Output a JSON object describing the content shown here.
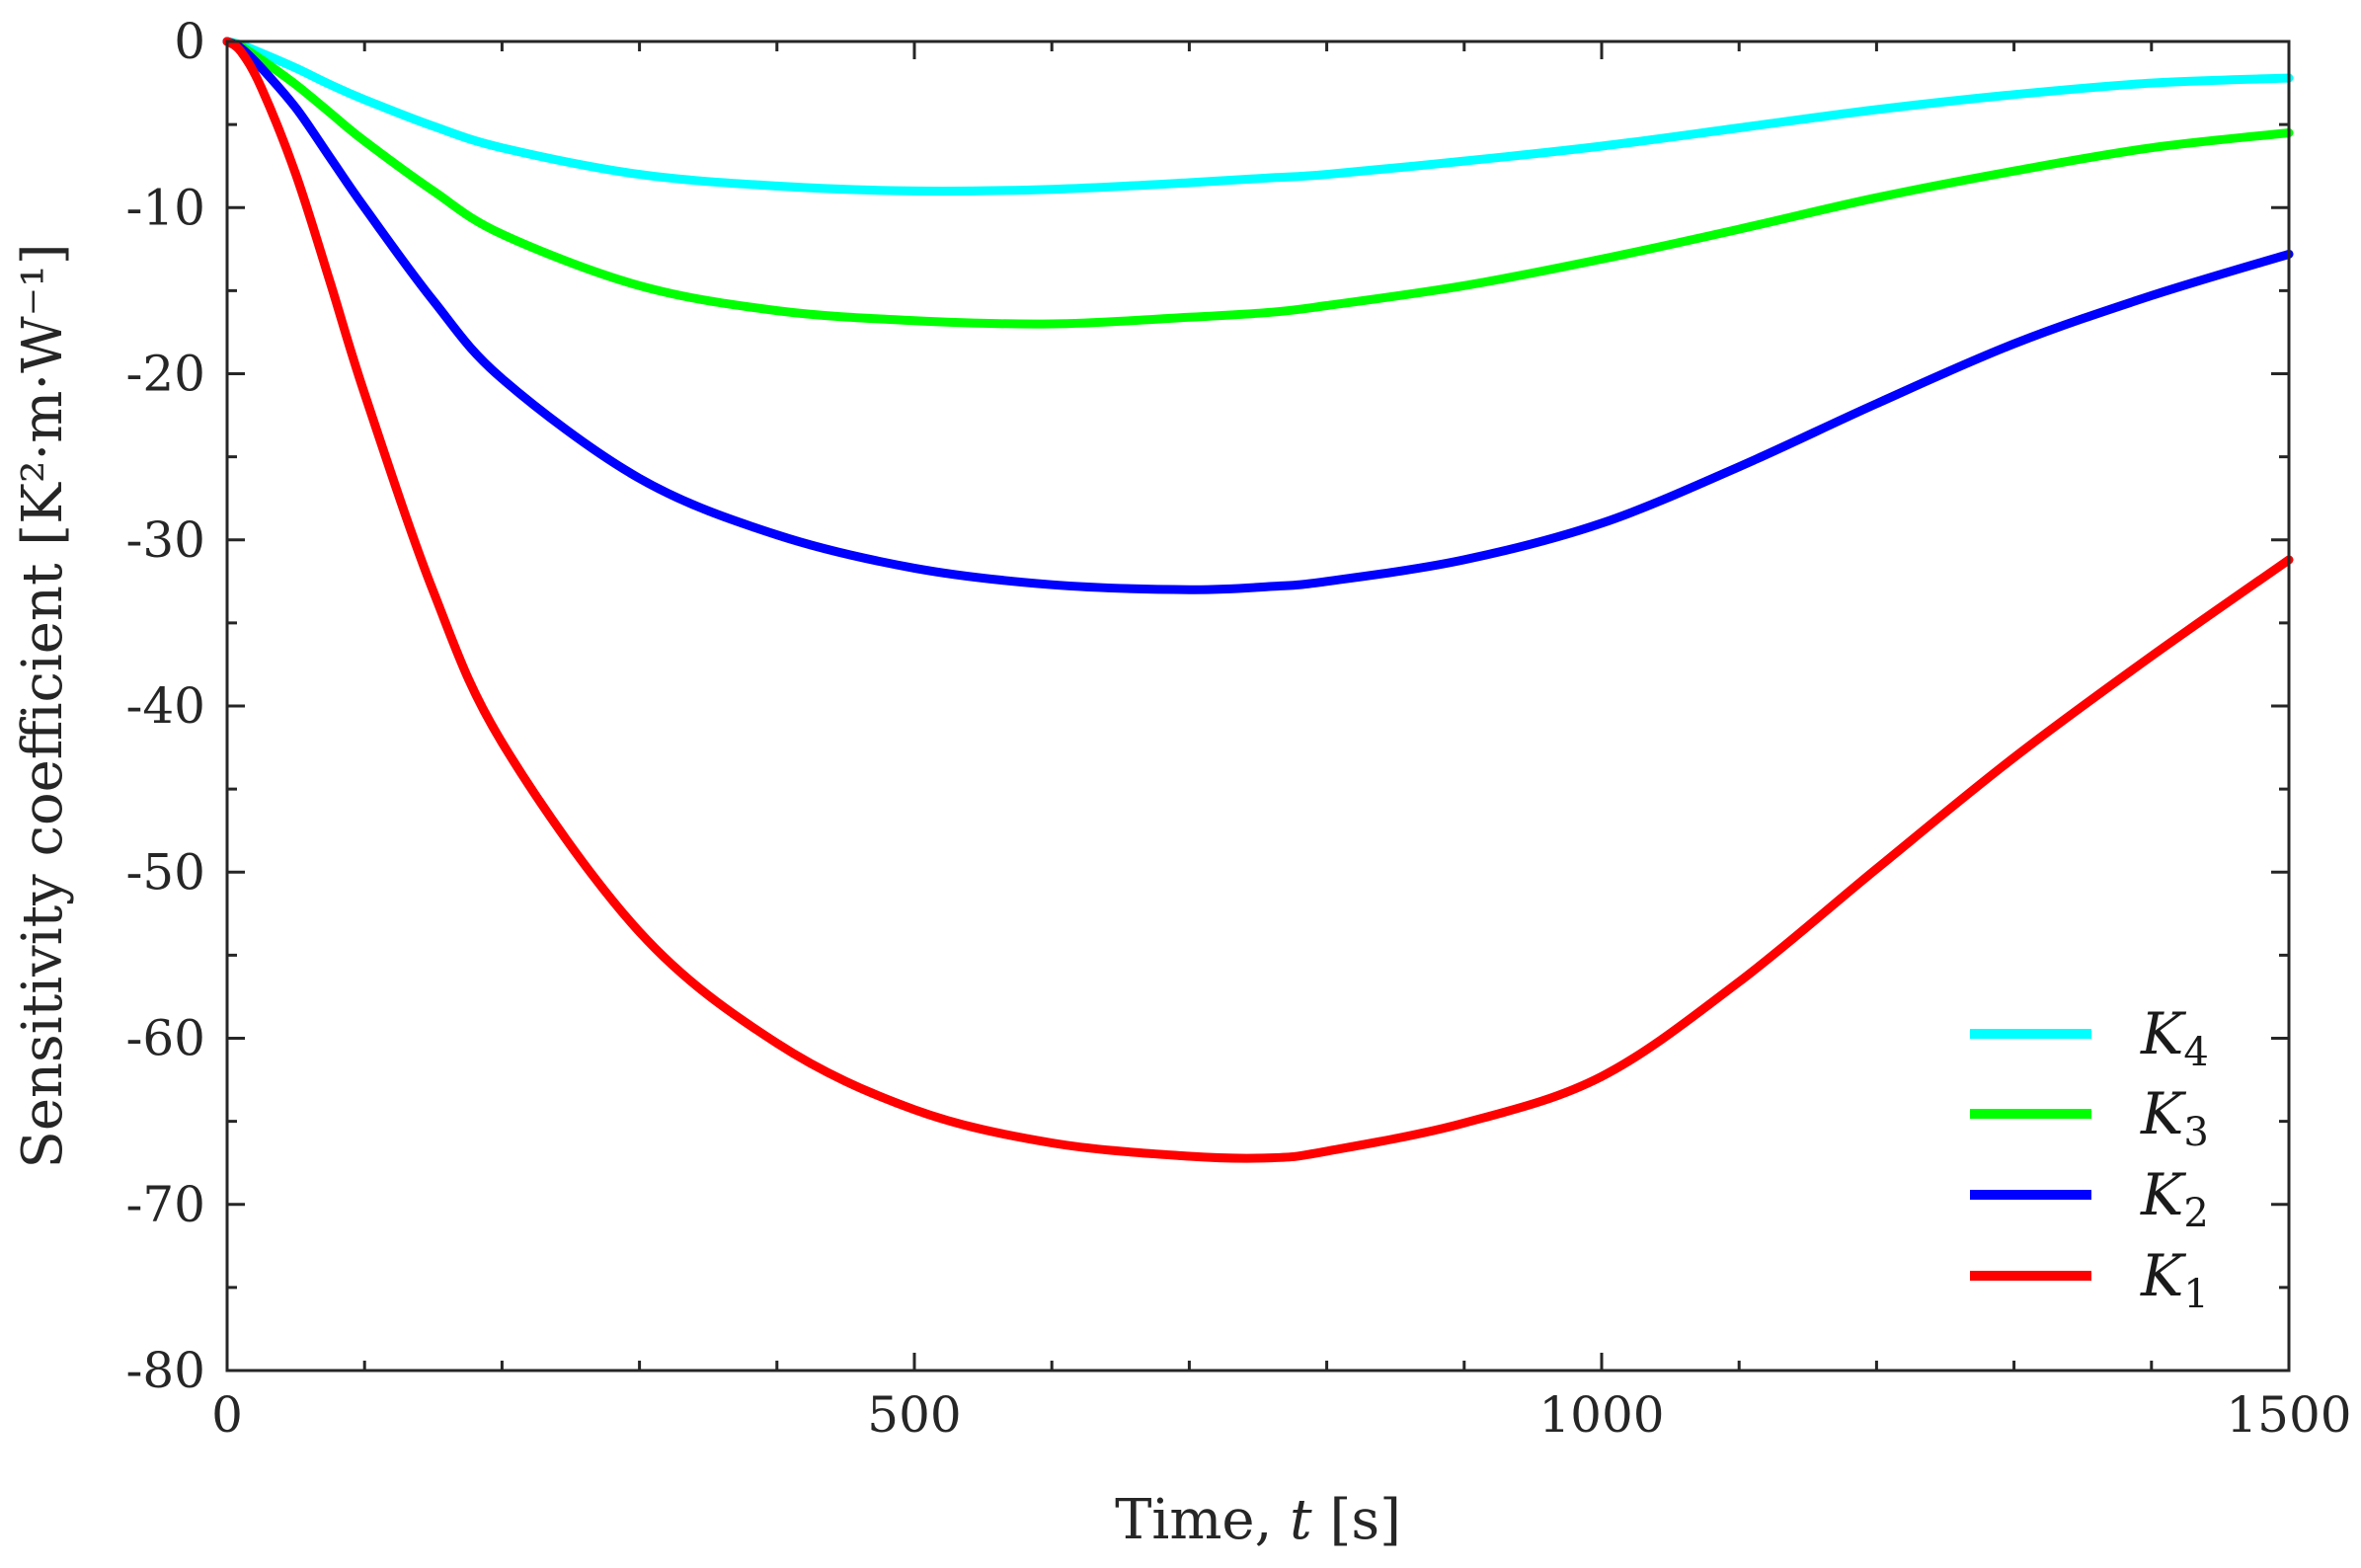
{
  "chart_data": {
    "type": "line",
    "title": "",
    "xlabel_prefix": "Time, ",
    "xlabel_var": "t",
    "xlabel_unit": " [s]",
    "ylabel": "Sensitivity coefficient [K²·m·W⁻¹]",
    "xlim": [
      0,
      1500
    ],
    "ylim": [
      -80,
      0
    ],
    "x_ticks": [
      0,
      500,
      1000,
      1500
    ],
    "x_tick_labels": [
      "0",
      "500",
      "1000",
      "1500"
    ],
    "x_minor_step": 100,
    "y_ticks": [
      0,
      -10,
      -20,
      -30,
      -40,
      -50,
      -60,
      -70,
      -80
    ],
    "y_tick_labels": [
      "0",
      "-10",
      "-20",
      "-30",
      "-40",
      "-50",
      "-60",
      "-70",
      "-80"
    ],
    "y_minor_step": 5,
    "grid": false,
    "legend_position": "bottom-right",
    "x": [
      0,
      10,
      25,
      50,
      75,
      100,
      150,
      200,
      300,
      400,
      500,
      600,
      700,
      760,
      800,
      900,
      1000,
      1100,
      1200,
      1300,
      1400,
      1500
    ],
    "series": [
      {
        "name": "K",
        "sub": "4",
        "color": "#00ffff",
        "values": [
          0,
          -0.2,
          -0.7,
          -1.6,
          -2.6,
          -3.5,
          -5.1,
          -6.4,
          -8.0,
          -8.7,
          -9.0,
          -8.9,
          -8.5,
          -8.2,
          -8.0,
          -7.2,
          -6.3,
          -5.2,
          -4.1,
          -3.2,
          -2.5,
          -2.2
        ]
      },
      {
        "name": "K",
        "sub": "3",
        "color": "#00ff00",
        "values": [
          0,
          -0.3,
          -1.1,
          -2.6,
          -4.3,
          -6.0,
          -9.0,
          -11.6,
          -14.7,
          -16.2,
          -16.8,
          -17.0,
          -16.6,
          -16.3,
          -15.9,
          -14.7,
          -13.1,
          -11.3,
          -9.4,
          -7.8,
          -6.4,
          -5.5
        ]
      },
      {
        "name": "K",
        "sub": "2",
        "color": "#0000ff",
        "values": [
          0,
          -0.4,
          -1.6,
          -4.0,
          -7.0,
          -10.0,
          -15.6,
          -20.3,
          -26.3,
          -29.7,
          -31.7,
          -32.7,
          -33.0,
          -32.8,
          -32.5,
          -31.2,
          -29.0,
          -25.6,
          -21.8,
          -18.2,
          -15.3,
          -12.8
        ]
      },
      {
        "name": "K",
        "sub": "1",
        "color": "#ff0000",
        "values": [
          0,
          -0.6,
          -2.8,
          -8.0,
          -14.5,
          -21.2,
          -33.1,
          -42.2,
          -53.6,
          -60.3,
          -64.3,
          -66.3,
          -67.1,
          -67.2,
          -66.8,
          -65.1,
          -62.3,
          -56.6,
          -49.8,
          -43.1,
          -37.0,
          -31.2
        ]
      }
    ]
  }
}
